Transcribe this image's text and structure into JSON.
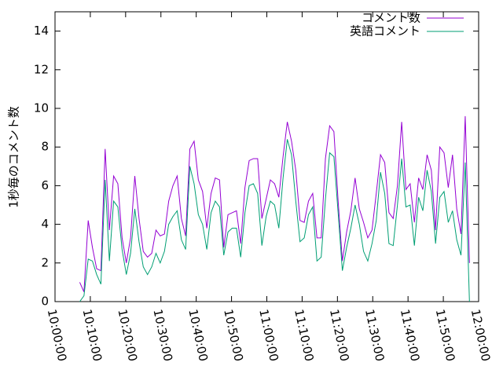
{
  "chart_data": {
    "type": "line",
    "ylabel": "1秒毎のコメント数",
    "x": [
      "10:07:00",
      "10:08:12",
      "10:09:24",
      "10:10:36",
      "10:11:48",
      "10:13:00",
      "10:14:12",
      "10:15:24",
      "10:16:36",
      "10:17:48",
      "10:19:00",
      "10:20:12",
      "10:21:24",
      "10:22:36",
      "10:23:48",
      "10:25:00",
      "10:26:12",
      "10:27:24",
      "10:28:36",
      "10:29:48",
      "10:31:00",
      "10:32:12",
      "10:33:24",
      "10:34:36",
      "10:35:48",
      "10:37:00",
      "10:38:12",
      "10:39:24",
      "10:40:36",
      "10:41:48",
      "10:43:00",
      "10:44:12",
      "10:45:24",
      "10:46:36",
      "10:47:48",
      "10:49:00",
      "10:50:12",
      "10:51:24",
      "10:52:36",
      "10:53:48",
      "10:55:00",
      "10:56:12",
      "10:57:24",
      "10:58:36",
      "10:59:48",
      "11:01:00",
      "11:02:12",
      "11:03:24",
      "11:04:36",
      "11:05:48",
      "11:07:00",
      "11:08:12",
      "11:09:24",
      "11:10:36",
      "11:11:48",
      "11:13:00",
      "11:14:12",
      "11:15:24",
      "11:16:36",
      "11:17:48",
      "11:19:00",
      "11:20:12",
      "11:21:24",
      "11:22:36",
      "11:23:48",
      "11:25:00",
      "11:26:12",
      "11:27:24",
      "11:28:36",
      "11:29:48",
      "11:31:00",
      "11:32:12",
      "11:33:24",
      "11:34:36",
      "11:35:48",
      "11:37:00",
      "11:38:12",
      "11:39:24",
      "11:40:36",
      "11:41:48",
      "11:43:00",
      "11:44:12",
      "11:45:24",
      "11:46:36",
      "11:47:48",
      "11:49:00",
      "11:50:12",
      "11:51:24",
      "11:52:36",
      "11:53:48",
      "11:55:00",
      "11:56:12",
      "11:57:24"
    ],
    "series": [
      {
        "name": "コメント数",
        "color": "#9400d3",
        "values": [
          1.0,
          0.5,
          4.2,
          2.8,
          1.7,
          1.6,
          7.9,
          3.7,
          6.5,
          6.1,
          3.3,
          2.0,
          3.3,
          6.5,
          4.3,
          2.6,
          2.3,
          2.5,
          3.7,
          3.4,
          3.5,
          5.2,
          6.0,
          6.5,
          4.3,
          3.4,
          7.9,
          8.3,
          6.3,
          5.7,
          3.8,
          5.6,
          6.4,
          6.3,
          2.8,
          4.5,
          4.6,
          4.7,
          3.0,
          5.9,
          7.3,
          7.4,
          7.4,
          4.3,
          5.3,
          6.3,
          6.1,
          5.4,
          7.5,
          9.3,
          8.3,
          6.8,
          4.2,
          4.1,
          5.2,
          5.6,
          3.3,
          3.3,
          7.4,
          9.1,
          8.8,
          5.2,
          2.1,
          3.6,
          4.7,
          6.4,
          4.8,
          4.1,
          3.3,
          3.7,
          5.6,
          7.6,
          7.2,
          4.6,
          4.3,
          6.0,
          9.3,
          5.8,
          6.1,
          4.1,
          6.4,
          5.8,
          7.6,
          6.8,
          3.7,
          8.0,
          7.7,
          5.9,
          7.6,
          4.8,
          3.5,
          9.6,
          2.0
        ]
      },
      {
        "name": "英語コメント",
        "color": "#009e73",
        "values": [
          0.0,
          0.3,
          2.2,
          2.1,
          1.4,
          0.9,
          6.3,
          2.1,
          5.2,
          4.9,
          2.7,
          1.4,
          2.5,
          4.8,
          3.1,
          1.8,
          1.4,
          1.8,
          2.5,
          2.0,
          2.6,
          4.0,
          4.4,
          4.7,
          3.2,
          2.7,
          7.0,
          6.1,
          4.5,
          4.0,
          2.7,
          4.6,
          5.2,
          4.9,
          2.4,
          3.6,
          3.8,
          3.8,
          2.3,
          4.6,
          6.0,
          6.1,
          5.6,
          2.9,
          4.4,
          5.2,
          5.0,
          3.8,
          6.4,
          8.4,
          7.6,
          5.2,
          3.1,
          3.3,
          4.5,
          4.9,
          2.1,
          2.3,
          5.3,
          7.7,
          7.5,
          4.6,
          1.6,
          2.8,
          3.8,
          5.0,
          4.0,
          2.6,
          2.1,
          3.0,
          4.2,
          6.7,
          5.6,
          3.0,
          2.9,
          5.0,
          7.4,
          4.9,
          5.0,
          2.9,
          5.4,
          4.7,
          6.8,
          5.7,
          3.0,
          5.4,
          5.7,
          4.1,
          4.7,
          3.2,
          2.4,
          7.2,
          0.0
        ]
      }
    ],
    "xlim": [
      "10:00:00",
      "12:00:00"
    ],
    "xticks": [
      "10:00:00",
      "10:10:00",
      "10:20:00",
      "10:30:00",
      "10:40:00",
      "10:50:00",
      "11:00:00",
      "11:10:00",
      "11:20:00",
      "11:30:00",
      "11:40:00",
      "11:50:00",
      "12:00:00"
    ],
    "ylim": [
      0,
      15
    ],
    "yticks": [
      0,
      2,
      4,
      6,
      8,
      10,
      12,
      14
    ],
    "grid": false,
    "legend": "top-right"
  }
}
